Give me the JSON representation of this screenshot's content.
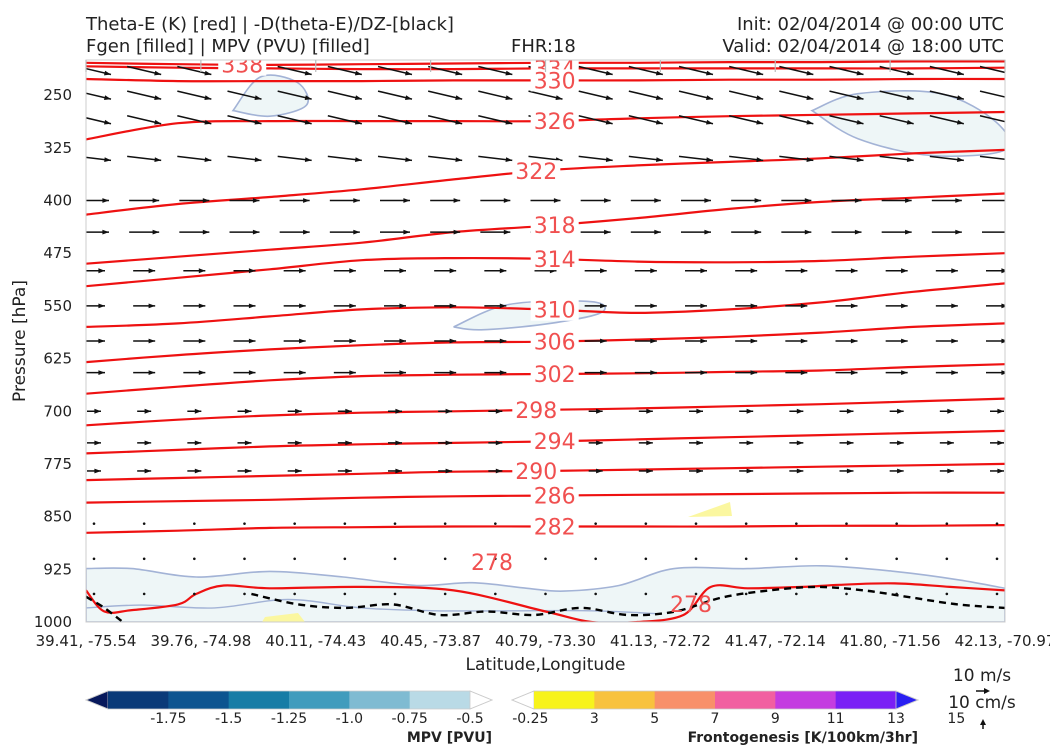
{
  "header": {
    "title_line1": "Theta-E (K) [red] | -D(theta-E)/DZ-[black]",
    "title_line2": "Fgen [filled] | MPV (PVU) [filled]",
    "fhr": "FHR:18",
    "init": "Init: 02/04/2014 @ 00:00 UTC",
    "valid": "Valid: 02/04/2014 @ 18:00 UTC"
  },
  "chart_data": {
    "type": "cross-section",
    "xlabel": "Latitude,Longitude",
    "ylabel": "Pressure [hPa]",
    "ylim": [
      1000,
      200
    ],
    "xticks": [
      "39.41, -75.54",
      "39.76, -74.98",
      "40.11, -74.43",
      "40.45, -73.87",
      "40.79, -73.30",
      "41.13, -72.72",
      "41.47, -72.14",
      "41.80, -71.56",
      "42.13, -70.97"
    ],
    "yticks": [
      250,
      325,
      400,
      475,
      550,
      625,
      700,
      775,
      850,
      925,
      1000
    ],
    "theta_e_contours": [
      {
        "level": 338,
        "label": "338",
        "p": [
          204,
          206,
          207,
          206,
          205,
          204,
          204,
          203,
          203,
          202,
          202
        ]
      },
      {
        "level": 334,
        "label": "334",
        "p": [
          209,
          211,
          212,
          213,
          213,
          212,
          212,
          212,
          212,
          212,
          211
        ]
      },
      {
        "level": 330,
        "label": "330",
        "p": [
          227,
          230,
          230,
          230,
          229,
          229,
          229,
          228,
          228,
          227,
          227
        ]
      },
      {
        "level": 326,
        "label": "326",
        "p": [
          313,
          290,
          287,
          287,
          287,
          287,
          283,
          280,
          278,
          276,
          274
        ]
      },
      {
        "level": 322,
        "label": "322",
        "p": [
          420,
          405,
          395,
          384,
          370,
          357,
          350,
          345,
          340,
          333,
          328
        ]
      },
      {
        "level": 318,
        "label": "318",
        "p": [
          490,
          480,
          470,
          460,
          445,
          436,
          425,
          412,
          402,
          396,
          390
        ]
      },
      {
        "level": 314,
        "label": "314",
        "p": [
          522,
          510,
          498,
          485,
          482,
          483,
          487,
          488,
          486,
          480,
          475
        ]
      },
      {
        "level": 310,
        "label": "310",
        "p": [
          580,
          575,
          565,
          555,
          552,
          555,
          560,
          555,
          545,
          530,
          518
        ]
      },
      {
        "level": 306,
        "label": "306",
        "p": [
          630,
          620,
          612,
          606,
          602,
          601,
          598,
          594,
          588,
          580,
          575
        ]
      },
      {
        "level": 302,
        "label": "302",
        "p": [
          675,
          665,
          656,
          650,
          648,
          647,
          646,
          644,
          642,
          637,
          633
        ]
      },
      {
        "level": 298,
        "label": "298",
        "p": [
          720,
          712,
          706,
          702,
          700,
          698,
          696,
          693,
          690,
          686,
          682
        ]
      },
      {
        "level": 294,
        "label": "294",
        "p": [
          760,
          755,
          750,
          747,
          745,
          743,
          740,
          737,
          734,
          731,
          728
        ]
      },
      {
        "level": 290,
        "label": "290",
        "p": [
          798,
          795,
          792,
          789,
          786,
          785,
          783,
          781,
          779,
          777,
          775
        ]
      },
      {
        "level": 286,
        "label": "286",
        "p": [
          830,
          828,
          826,
          823,
          821,
          820,
          819,
          818,
          817,
          816,
          816
        ]
      },
      {
        "level": 282,
        "label": "282",
        "p": [
          873,
          870,
          866,
          865,
          864,
          864,
          864,
          864,
          863,
          863,
          862
        ]
      }
    ],
    "contour_278": {
      "label": "278",
      "p": [
        955,
        985,
        983,
        975,
        960,
        948,
        952,
        950,
        955,
        985,
        1000,
        1000,
        990,
        950,
        952,
        950,
        947,
        945,
        950,
        955
      ],
      "x": [
        0,
        0.02,
        0.05,
        0.1,
        0.12,
        0.15,
        0.2,
        0.3,
        0.4,
        0.5,
        0.55,
        0.6,
        0.65,
        0.68,
        0.72,
        0.78,
        0.82,
        0.88,
        0.94,
        1
      ]
    },
    "wind_barbs_pressure_levels": [
      215,
      250,
      285,
      340,
      400,
      445,
      500,
      550,
      600,
      645,
      700,
      745,
      785,
      860,
      910,
      960
    ],
    "dashed_black_contour": {
      "description_level": "-D(theta-E)/DZ",
      "p": [
        960,
        975,
        980,
        975,
        990,
        985,
        990,
        980,
        990,
        985,
        965,
        955,
        950,
        955,
        965,
        975,
        980
      ]
    },
    "mpv_colorbar": {
      "label": "MPV [PVU]",
      "ticks": [
        "-1.75",
        "-1.5",
        "-1.25",
        "-1.0",
        "-0.75",
        "-0.5",
        "-0.25"
      ],
      "colors": [
        "#08195c",
        "#0a3a78",
        "#0d5590",
        "#177da6",
        "#409cbd",
        "#7fbbd2",
        "#b9dae6",
        "#ffffff"
      ]
    },
    "fgen_colorbar": {
      "label": "Frontogenesis [K/100km/3hr]",
      "ticks": [
        "3",
        "5",
        "7",
        "9",
        "11",
        "13",
        "15"
      ],
      "colors": [
        "#ffffff",
        "#f7f31c",
        "#f8c23e",
        "#f8906a",
        "#f15fa1",
        "#c43ce0",
        "#7a1ff5",
        "#2a1ff2"
      ]
    },
    "vector_key": {
      "horizontal": "10 m/s",
      "vertical": "10 cm/s"
    }
  }
}
